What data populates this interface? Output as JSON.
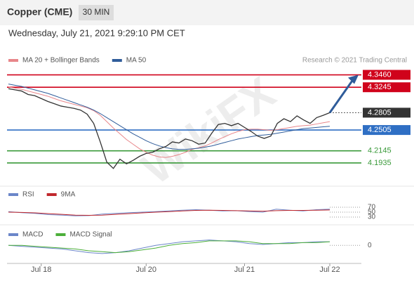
{
  "header": {
    "title": "Copper (CME)",
    "interval": "30 MIN"
  },
  "chart_data": [
    {
      "type": "line",
      "subtitle": "Wednesday, July 21, 2021 9:29:10 PM CET",
      "credit": "Research © 2021 Trading Central",
      "watermark": "WikiFX",
      "xlim": [
        0,
        49
      ],
      "ylim": [
        4.157,
        4.36
      ],
      "xticks": [
        {
          "value": 5,
          "label": "Jul 18"
        },
        {
          "value": 21,
          "label": "Jul 20"
        },
        {
          "value": 36,
          "label": "Jul 21"
        },
        {
          "value": 49,
          "label": "Jul 22"
        }
      ],
      "series": [
        {
          "name": "MA 20 + Bollinger Bands",
          "color": "#e8868a",
          "values": [
            4.325,
            4.323,
            4.321,
            4.318,
            4.315,
            4.312,
            4.309,
            4.305,
            4.301,
            4.298,
            4.295,
            4.292,
            4.289,
            4.284,
            4.276,
            4.265,
            4.254,
            4.244,
            4.234,
            4.226,
            4.218,
            4.212,
            4.207,
            4.204,
            4.203,
            4.205,
            4.208,
            4.212,
            4.217,
            4.22,
            4.223,
            4.228,
            4.234,
            4.239,
            4.244,
            4.248,
            4.251,
            4.252,
            4.252,
            4.251,
            4.25,
            4.251,
            4.253,
            4.255,
            4.257,
            4.258,
            4.259,
            4.261,
            4.263,
            4.265
          ]
        },
        {
          "name": "MA 50",
          "color": "#2f5c9a",
          "values": [
            4.33,
            4.328,
            4.326,
            4.323,
            4.32,
            4.317,
            4.314,
            4.31,
            4.306,
            4.302,
            4.298,
            4.294,
            4.29,
            4.285,
            4.279,
            4.272,
            4.265,
            4.258,
            4.251,
            4.244,
            4.238,
            4.232,
            4.227,
            4.223,
            4.22,
            4.218,
            4.217,
            4.217,
            4.218,
            4.219,
            4.221,
            4.223,
            4.226,
            4.229,
            4.232,
            4.235,
            4.237,
            4.239,
            4.241,
            4.242,
            4.243,
            4.245,
            4.247,
            4.249,
            4.251,
            4.253,
            4.254,
            4.255,
            4.256,
            4.257
          ]
        },
        {
          "color": "#333333",
          "values": [
            4.322,
            4.32,
            4.318,
            4.312,
            4.31,
            4.305,
            4.3,
            4.296,
            4.292,
            4.29,
            4.288,
            4.285,
            4.278,
            4.262,
            4.23,
            4.195,
            4.184,
            4.2,
            4.192,
            4.198,
            4.205,
            4.21,
            4.212,
            4.218,
            4.222,
            4.23,
            4.228,
            4.235,
            4.232,
            4.226,
            4.228,
            4.245,
            4.26,
            4.262,
            4.258,
            4.262,
            4.255,
            4.248,
            4.24,
            4.236,
            4.24,
            4.262,
            4.27,
            4.265,
            4.275,
            4.268,
            4.262,
            4.272,
            4.276,
            4.2805
          ]
        }
      ],
      "levels": [
        {
          "value": 4.346,
          "label": "4.3460",
          "color": "#d0021b",
          "box": true
        },
        {
          "value": 4.3245,
          "label": "4.3245",
          "color": "#d0021b",
          "box": true
        },
        {
          "value": 4.2805,
          "label": "4.2805",
          "color": "#333333",
          "box": true,
          "dash": true
        },
        {
          "value": 4.2505,
          "label": "4.2505",
          "color": "#2f6fc4",
          "box": true
        },
        {
          "value": 4.2145,
          "label": "4.2145",
          "color": "#3a9a3a",
          "box": false
        },
        {
          "value": 4.1935,
          "label": "4.1935",
          "color": "#3a9a3a",
          "box": false
        }
      ]
    },
    {
      "type": "line",
      "xlim": [
        0,
        24
      ],
      "ylim": [
        0,
        100
      ],
      "yticks": [
        70,
        50,
        30
      ],
      "series": [
        {
          "name": "RSI",
          "color": "#6b86c9",
          "values": [
            52,
            48,
            45,
            40,
            38,
            35,
            36,
            42,
            45,
            48,
            50,
            52,
            55,
            58,
            60,
            58,
            55,
            56,
            52,
            50,
            62,
            58,
            55,
            60,
            62
          ]
        },
        {
          "name": "9MA",
          "color": "#c0282d",
          "values": [
            50,
            49,
            47,
            44,
            41,
            38,
            37,
            38,
            41,
            44,
            47,
            50,
            52,
            55,
            57,
            58,
            57,
            56,
            55,
            54,
            56,
            57,
            57,
            58,
            59
          ]
        }
      ]
    },
    {
      "type": "line",
      "xlim": [
        0,
        24
      ],
      "ylim": [
        -0.02,
        0.015
      ],
      "yticks": [
        0
      ],
      "series": [
        {
          "name": "MACD",
          "color": "#6b86c9",
          "values": [
            0,
            -0.001,
            -0.002,
            -0.003,
            -0.004,
            -0.006,
            -0.008,
            -0.009,
            -0.008,
            -0.006,
            -0.003,
            0,
            0.002,
            0.004,
            0.005,
            0.006,
            0.005,
            0.004,
            0.002,
            0.001,
            0.002,
            0.003,
            0.003,
            0.004,
            0.004
          ]
        },
        {
          "name": "MACD Signal",
          "color": "#4caf3a",
          "values": [
            0,
            0,
            -0.001,
            -0.002,
            -0.003,
            -0.004,
            -0.006,
            -0.007,
            -0.008,
            -0.007,
            -0.005,
            -0.003,
            0,
            0.002,
            0.003,
            0.005,
            0.005,
            0.005,
            0.004,
            0.002,
            0.002,
            0.002,
            0.003,
            0.003,
            0.004
          ]
        }
      ]
    }
  ]
}
